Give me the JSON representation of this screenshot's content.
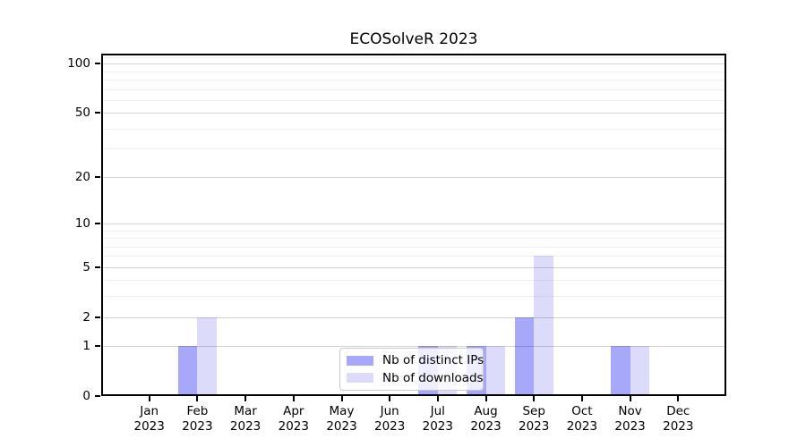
{
  "title": "ECOSolveR 2023",
  "colors": {
    "distinct_ips": "#a8a8fa",
    "downloads": "#dcdcfa",
    "axis": "#000000",
    "grid_major": "#d4d4d4",
    "grid_minor": "#ededed",
    "legend_border": "#c8c8c8"
  },
  "legend": {
    "items": [
      {
        "label": "Nb of distinct IPs",
        "color_key": "distinct_ips"
      },
      {
        "label": "Nb of downloads",
        "color_key": "downloads"
      }
    ]
  },
  "chart_data": {
    "type": "bar",
    "title": "ECOSolveR 2023",
    "x_tick_months": [
      "Jan",
      "Feb",
      "Mar",
      "Apr",
      "May",
      "Jun",
      "Jul",
      "Aug",
      "Sep",
      "Oct",
      "Nov",
      "Dec"
    ],
    "x_tick_year": "2023",
    "series": [
      {
        "name": "Nb of distinct IPs",
        "values": [
          0,
          1,
          0,
          0,
          0,
          0,
          1,
          1,
          2,
          0,
          1,
          0
        ]
      },
      {
        "name": "Nb of downloads",
        "values": [
          0,
          2,
          0,
          0,
          0,
          0,
          1,
          1,
          6,
          0,
          1,
          0
        ]
      }
    ],
    "yscale": "log1p",
    "y_major_ticks": [
      0,
      1,
      2,
      5,
      10,
      20,
      50,
      100
    ],
    "y_minor_ticks": [
      3,
      4,
      6,
      7,
      8,
      9,
      30,
      40,
      60,
      70,
      80,
      90,
      110
    ],
    "ylim": [
      0,
      115
    ],
    "grid": true,
    "legend_position": "lower center"
  }
}
